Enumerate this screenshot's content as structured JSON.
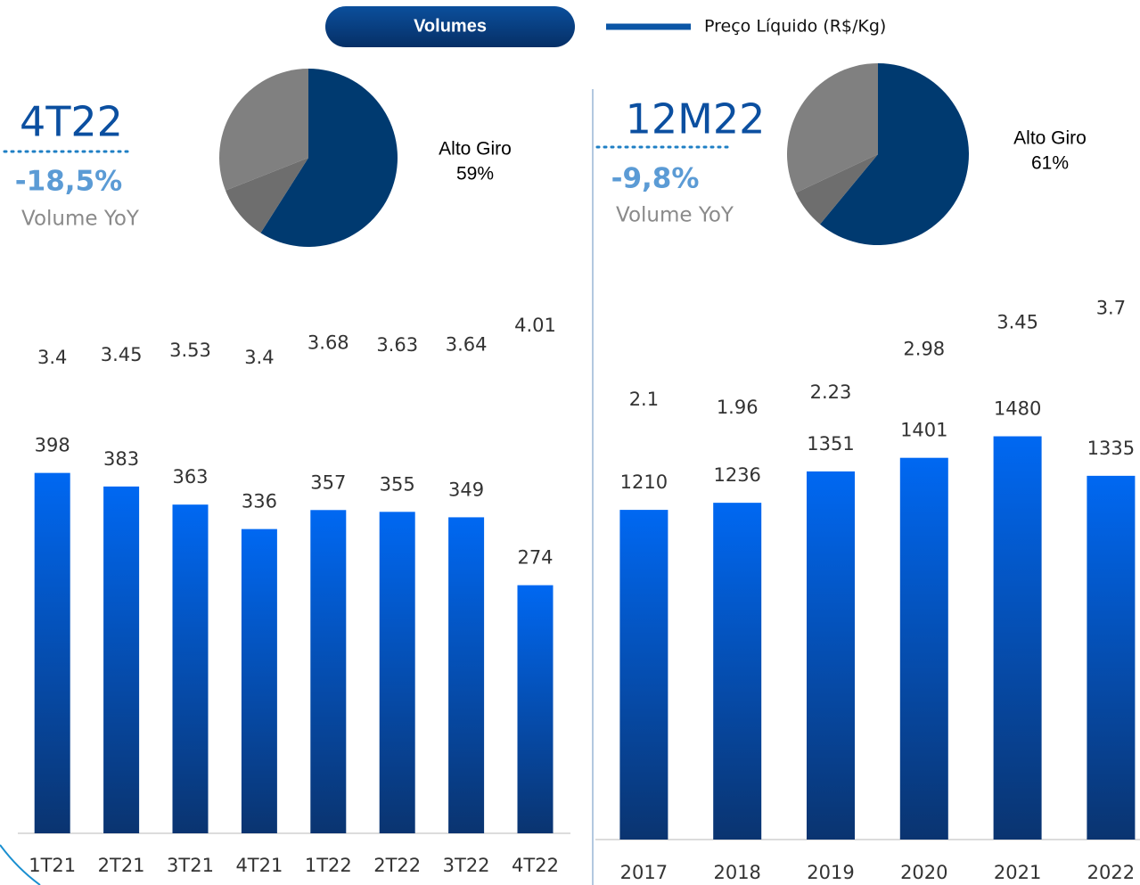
{
  "chart_data": [
    {
      "type": "pie",
      "title": "4T22",
      "annotations": [
        "-18,5%",
        "Volume YoY"
      ],
      "categories": [
        "Alto Giro",
        null,
        null
      ],
      "values": [
        59,
        10,
        31
      ],
      "value_labels": [
        "59%",
        null,
        null
      ],
      "colors": [
        "#003a70",
        "#6e6e6e",
        "#808080"
      ]
    },
    {
      "type": "bar",
      "categories": [
        "1T21",
        "2T21",
        "3T21",
        "4T21",
        "1T22",
        "2T22",
        "3T22",
        "4T22"
      ],
      "series": [
        {
          "name": "Volumes",
          "color": "#0a62e6",
          "values": [
            398,
            383,
            363,
            336,
            357,
            355,
            349,
            274
          ]
        },
        {
          "name": "Preço Líquido (R$/Kg)",
          "color": "#0b56a6",
          "type": "line",
          "axis": "y2",
          "values": [
            3.4,
            3.45,
            3.53,
            3.4,
            3.68,
            3.63,
            3.64,
            4.01
          ]
        }
      ],
      "ylim": [
        0,
        625
      ],
      "y2lim": [
        -5,
        5.75
      ]
    },
    {
      "type": "pie",
      "title": "12M22",
      "annotations": [
        "-9,8%",
        "Volume YoY"
      ],
      "categories": [
        "Alto Giro",
        null,
        null
      ],
      "values": [
        61,
        7,
        32
      ],
      "value_labels": [
        "61%",
        null,
        null
      ],
      "colors": [
        "#003a70",
        "#6e6e6e",
        "#808080"
      ]
    },
    {
      "type": "bar",
      "categories": [
        "2017",
        "2018",
        "2019",
        "2020",
        "2021",
        "2022"
      ],
      "series": [
        {
          "color": "#0a62e6",
          "values": [
            1210,
            1236,
            1351,
            1401,
            1480,
            1335
          ]
        },
        {
          "color": "#0b56a6",
          "type": "line",
          "axis": "y2",
          "values": [
            2.1,
            1.96,
            2.23,
            2.98,
            3.45,
            3.7
          ]
        }
      ],
      "ylim": [
        0,
        2100
      ],
      "y2lim": [
        -5,
        5
      ]
    }
  ]
}
